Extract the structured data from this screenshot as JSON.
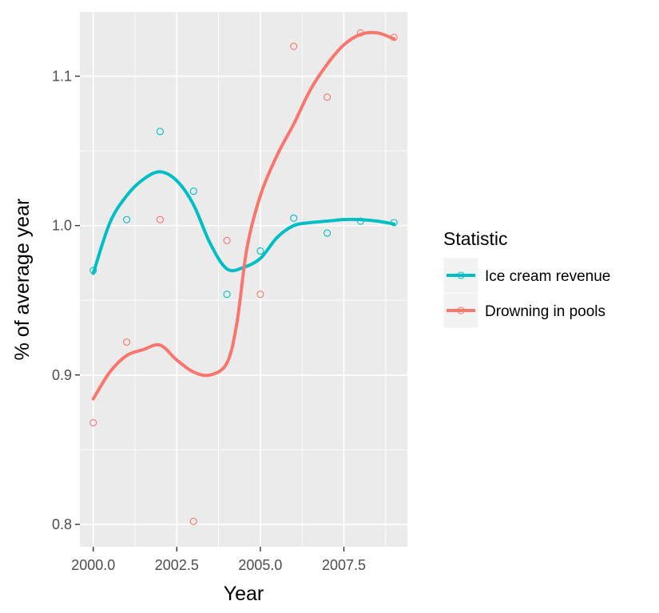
{
  "chart_data": {
    "type": "line",
    "title": "",
    "xlabel": "Year",
    "ylabel": "% of average year",
    "xlim": [
      1999.6,
      2009.4
    ],
    "ylim": [
      0.785,
      1.143
    ],
    "x_ticks": [
      {
        "value": 2000.0,
        "label": "2000.0"
      },
      {
        "value": 2002.5,
        "label": "2002.5"
      },
      {
        "value": 2005.0,
        "label": "2005.0"
      },
      {
        "value": 2007.5,
        "label": "2007.5"
      }
    ],
    "y_ticks": [
      {
        "value": 0.8,
        "label": "0.8"
      },
      {
        "value": 0.9,
        "label": "0.9"
      },
      {
        "value": 1.0,
        "label": "1.0"
      },
      {
        "value": 1.1,
        "label": "1.1"
      }
    ],
    "grid": true,
    "legend": {
      "title": "Statistic",
      "position": "right"
    },
    "series": [
      {
        "name": "Ice cream revenue",
        "color": "#00BFC4",
        "points": [
          {
            "x": 2000,
            "y": 0.97
          },
          {
            "x": 2001,
            "y": 1.004
          },
          {
            "x": 2002,
            "y": 1.063
          },
          {
            "x": 2003,
            "y": 1.023
          },
          {
            "x": 2004,
            "y": 0.954
          },
          {
            "x": 2005,
            "y": 0.983
          },
          {
            "x": 2006,
            "y": 1.005
          },
          {
            "x": 2007,
            "y": 0.995
          },
          {
            "x": 2008,
            "y": 1.003
          },
          {
            "x": 2009,
            "y": 1.002
          }
        ],
        "smooth": [
          {
            "x": 2000.0,
            "y": 0.968
          },
          {
            "x": 2000.5,
            "y": 1.002
          },
          {
            "x": 2001.0,
            "y": 1.02
          },
          {
            "x": 2001.5,
            "y": 1.031
          },
          {
            "x": 2002.0,
            "y": 1.036
          },
          {
            "x": 2002.5,
            "y": 1.03
          },
          {
            "x": 2003.0,
            "y": 1.014
          },
          {
            "x": 2003.5,
            "y": 0.988
          },
          {
            "x": 2004.0,
            "y": 0.971
          },
          {
            "x": 2004.5,
            "y": 0.972
          },
          {
            "x": 2005.0,
            "y": 0.978
          },
          {
            "x": 2005.5,
            "y": 0.992
          },
          {
            "x": 2006.0,
            "y": 1.0
          },
          {
            "x": 2006.5,
            "y": 1.002
          },
          {
            "x": 2007.0,
            "y": 1.003
          },
          {
            "x": 2007.5,
            "y": 1.004
          },
          {
            "x": 2008.0,
            "y": 1.004
          },
          {
            "x": 2008.5,
            "y": 1.003
          },
          {
            "x": 2009.0,
            "y": 1.001
          }
        ]
      },
      {
        "name": "Drowning in pools",
        "color": "#F8766D",
        "points": [
          {
            "x": 2000,
            "y": 0.868
          },
          {
            "x": 2001,
            "y": 0.922
          },
          {
            "x": 2002,
            "y": 1.004
          },
          {
            "x": 2003,
            "y": 0.802
          },
          {
            "x": 2004,
            "y": 0.99
          },
          {
            "x": 2005,
            "y": 0.954
          },
          {
            "x": 2006,
            "y": 1.12
          },
          {
            "x": 2007,
            "y": 1.086
          },
          {
            "x": 2008,
            "y": 1.129
          },
          {
            "x": 2009,
            "y": 1.126
          }
        ],
        "smooth": [
          {
            "x": 2000.0,
            "y": 0.884
          },
          {
            "x": 2000.5,
            "y": 0.902
          },
          {
            "x": 2001.0,
            "y": 0.913
          },
          {
            "x": 2001.5,
            "y": 0.917
          },
          {
            "x": 2002.0,
            "y": 0.92
          },
          {
            "x": 2002.5,
            "y": 0.91
          },
          {
            "x": 2003.0,
            "y": 0.902
          },
          {
            "x": 2003.5,
            "y": 0.9
          },
          {
            "x": 2004.0,
            "y": 0.908
          },
          {
            "x": 2004.3,
            "y": 0.935
          },
          {
            "x": 2004.6,
            "y": 0.985
          },
          {
            "x": 2005.0,
            "y": 1.02
          },
          {
            "x": 2005.5,
            "y": 1.047
          },
          {
            "x": 2006.0,
            "y": 1.068
          },
          {
            "x": 2006.5,
            "y": 1.091
          },
          {
            "x": 2007.0,
            "y": 1.108
          },
          {
            "x": 2007.5,
            "y": 1.121
          },
          {
            "x": 2008.0,
            "y": 1.128
          },
          {
            "x": 2008.5,
            "y": 1.129
          },
          {
            "x": 2009.0,
            "y": 1.125
          }
        ]
      }
    ]
  }
}
